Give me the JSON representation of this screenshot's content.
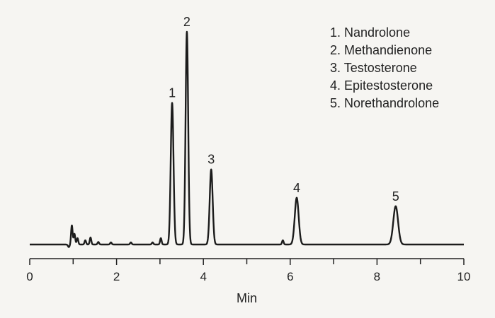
{
  "chart_data": {
    "type": "line",
    "title": "",
    "xlabel": "Min",
    "ylabel": "",
    "xlim": [
      0,
      10
    ],
    "ylim": [
      0,
      100
    ],
    "x_ticks": [
      0,
      2,
      4,
      6,
      8,
      10
    ],
    "x_tick_labels": [
      "0",
      "2",
      "4",
      "6",
      "8",
      "10"
    ],
    "grid": false,
    "legend": {
      "placement": "top-right",
      "items": [
        "1.  Nandrolone",
        "2.  Methandienone",
        "3.  Testosterone",
        "4.  Epitestosterone",
        "5.  Norethandrolone"
      ]
    },
    "peaks": [
      {
        "label": "1",
        "x": 3.28,
        "height": 66.6
      },
      {
        "label": "2",
        "x": 3.62,
        "height": 100.0
      },
      {
        "label": "3",
        "x": 4.18,
        "height": 35.3
      },
      {
        "label": "4",
        "x": 6.15,
        "height": 22.0
      },
      {
        "label": "5",
        "x": 8.43,
        "height": 18.0
      }
    ],
    "minor_peaks": [
      {
        "x": 0.97,
        "height": 9.0
      },
      {
        "x": 1.03,
        "height": 5.0
      },
      {
        "x": 1.1,
        "height": 3.0
      },
      {
        "x": 1.28,
        "height": 2.0
      },
      {
        "x": 1.4,
        "height": 3.3
      },
      {
        "x": 1.58,
        "height": 1.2
      },
      {
        "x": 1.87,
        "height": 1.0
      },
      {
        "x": 2.33,
        "height": 1.0
      },
      {
        "x": 2.83,
        "height": 1.0
      },
      {
        "x": 3.02,
        "height": 3.0
      },
      {
        "x": 5.83,
        "height": 2.0
      }
    ]
  }
}
